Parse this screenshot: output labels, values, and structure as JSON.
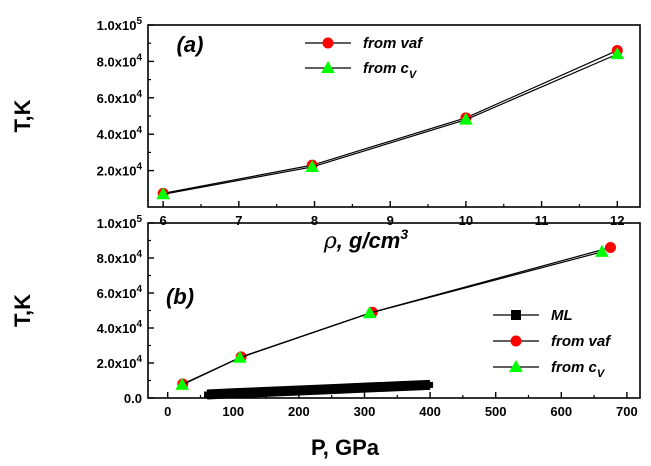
{
  "chart_data": [
    {
      "type": "line",
      "panel_label": "(a)",
      "xlabel_symbol": "ρ",
      "xlabel_text": ", g/cm",
      "xlabel_sup": "3",
      "ylabel": "T,K",
      "xlim": [
        5.8,
        12.3
      ],
      "ylim": [
        0,
        100000
      ],
      "xticks": [
        6,
        7,
        8,
        9,
        10,
        11,
        12
      ],
      "yticks": [
        20000,
        40000,
        60000,
        80000,
        100000
      ],
      "ytick_labels": [
        {
          "mant": "2.0x10",
          "exp": "4"
        },
        {
          "mant": "4.0x10",
          "exp": "4"
        },
        {
          "mant": "6.0x10",
          "exp": "4"
        },
        {
          "mant": "8.0x10",
          "exp": "4"
        },
        {
          "mant": "1.0x10",
          "exp": "5"
        }
      ],
      "legend_position": "top-center",
      "series": [
        {
          "name": "from vaf",
          "marker": "circle",
          "color": "#ff0000",
          "x": [
            6,
            7.97,
            10,
            12
          ],
          "y": [
            7500,
            23000,
            49000,
            86000
          ]
        },
        {
          "name": "from c",
          "name_sub": "V",
          "marker": "triangle",
          "color": "#00ff00",
          "x": [
            6,
            7.97,
            10,
            12
          ],
          "y": [
            7000,
            22000,
            48000,
            84000
          ]
        }
      ]
    },
    {
      "type": "line",
      "panel_label": "(b)",
      "xlabel": "P, GPa",
      "ylabel": "T,K",
      "xlim": [
        -30,
        720
      ],
      "ylim": [
        0,
        100000
      ],
      "xticks": [
        0,
        100,
        200,
        300,
        400,
        500,
        600,
        700
      ],
      "yticks": [
        0,
        20000,
        40000,
        60000,
        80000,
        100000
      ],
      "ytick_labels": [
        {
          "mant": "0.0",
          "exp": ""
        },
        {
          "mant": "2.0x10",
          "exp": "4"
        },
        {
          "mant": "4.0x10",
          "exp": "4"
        },
        {
          "mant": "6.0x10",
          "exp": "4"
        },
        {
          "mant": "8.0x10",
          "exp": "4"
        },
        {
          "mant": "1.0x10",
          "exp": "5"
        }
      ],
      "legend_position": "bottom-right",
      "series": [
        {
          "name": "ML",
          "marker": "square",
          "color": "#000000",
          "x": [
            60,
            100,
            150,
            200,
            250,
            300,
            350,
            400
          ],
          "y": [
            2000,
            2700,
            3500,
            4300,
            5100,
            5900,
            6700,
            7500
          ]
        },
        {
          "name": "from vaf",
          "marker": "circle",
          "color": "#ff0000",
          "x": [
            23,
            112,
            312,
            675
          ],
          "y": [
            8000,
            23500,
            49000,
            86000
          ]
        },
        {
          "name": "from c",
          "name_sub": "V",
          "marker": "triangle",
          "color": "#00ff00",
          "x": [
            22,
            110,
            308,
            662
          ],
          "y": [
            7500,
            23000,
            48500,
            83500
          ]
        }
      ]
    }
  ]
}
